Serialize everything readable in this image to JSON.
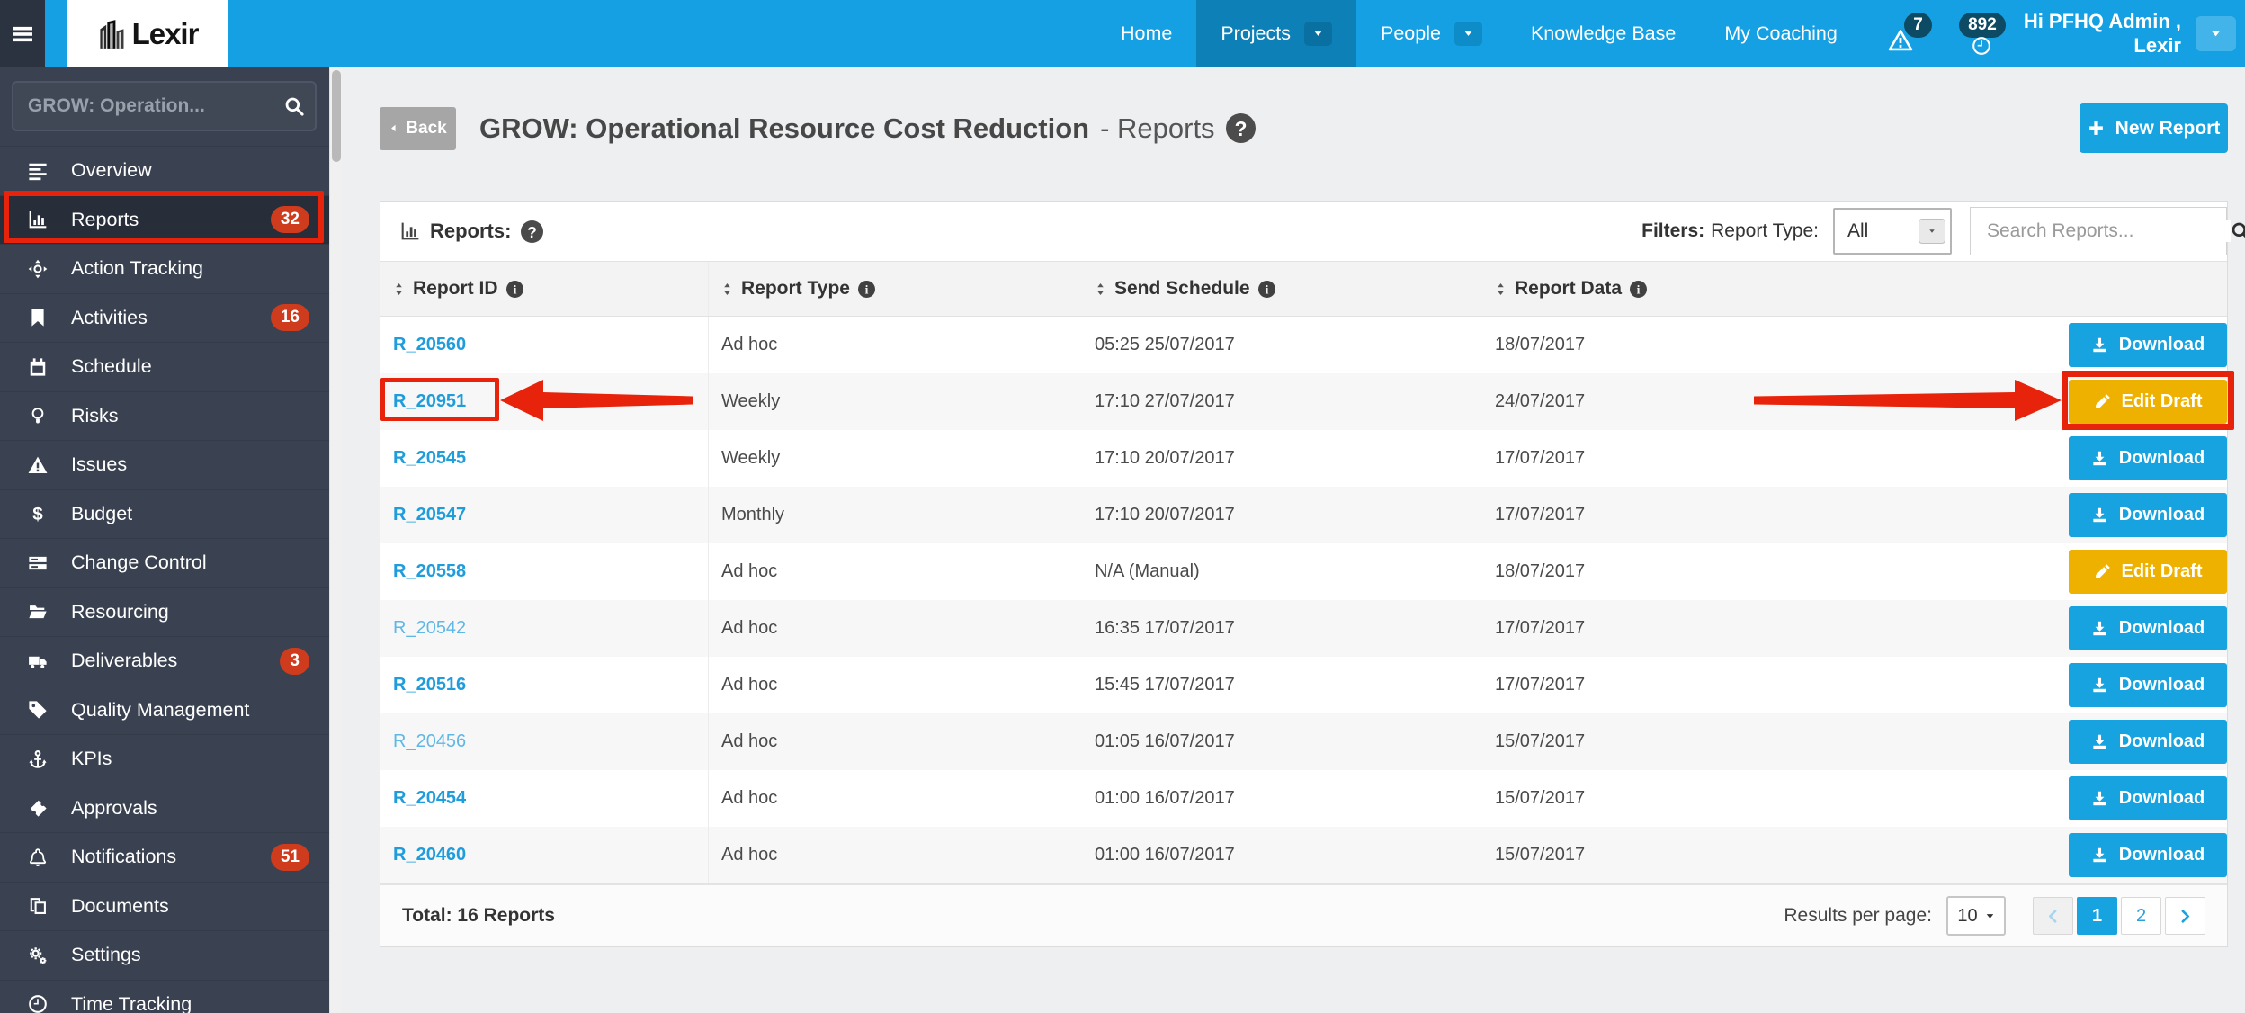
{
  "navbar": {
    "brand": "Lexir",
    "items": [
      {
        "label": "Home",
        "active": false,
        "dropdown": false
      },
      {
        "label": "Projects",
        "active": true,
        "dropdown": true
      },
      {
        "label": "People",
        "active": false,
        "dropdown": true
      },
      {
        "label": "Knowledge Base",
        "active": false,
        "dropdown": false
      },
      {
        "label": "My Coaching",
        "active": false,
        "dropdown": false
      }
    ],
    "alerts_badge": "7",
    "notifications_badge": "892",
    "user_greeting_line1": "Hi PFHQ Admin ,",
    "user_greeting_line2": "Lexir"
  },
  "sidebar": {
    "search_placeholder": "GROW: Operation...",
    "items": [
      {
        "label": "Overview",
        "icon": "align-left-icon"
      },
      {
        "label": "Reports",
        "icon": "bar-chart-icon",
        "badge": "32",
        "active": true
      },
      {
        "label": "Action Tracking",
        "icon": "crosshair-icon"
      },
      {
        "label": "Activities",
        "icon": "bookmark-icon",
        "badge": "16"
      },
      {
        "label": "Schedule",
        "icon": "calendar-icon"
      },
      {
        "label": "Risks",
        "icon": "lightbulb-icon"
      },
      {
        "label": "Issues",
        "icon": "warning-icon"
      },
      {
        "label": "Budget",
        "icon": "dollar-icon"
      },
      {
        "label": "Change Control",
        "icon": "server-icon"
      },
      {
        "label": "Resourcing",
        "icon": "folder-icon"
      },
      {
        "label": "Deliverables",
        "icon": "truck-icon",
        "badge": "3"
      },
      {
        "label": "Quality Management",
        "icon": "tag-icon"
      },
      {
        "label": "KPIs",
        "icon": "anchor-icon"
      },
      {
        "label": "Approvals",
        "icon": "ticket-icon"
      },
      {
        "label": "Notifications",
        "icon": "bell-icon",
        "badge": "51"
      },
      {
        "label": "Documents",
        "icon": "copy-icon"
      },
      {
        "label": "Settings",
        "icon": "gears-icon"
      },
      {
        "label": "Time Tracking",
        "icon": "clock-icon"
      }
    ]
  },
  "header": {
    "back_label": "Back",
    "title": "GROW: Operational Resource Cost Reduction",
    "subtitle": "- Reports",
    "new_report_label": "New Report"
  },
  "toolbar": {
    "panel_title": "Reports:",
    "filters_label": "Filters:",
    "filter_name": "Report Type:",
    "filter_value": "All",
    "search_placeholder": "Search Reports..."
  },
  "table": {
    "columns": [
      "Report ID",
      "Report Type",
      "Send Schedule",
      "Report Data"
    ],
    "rows": [
      {
        "id": "R_20560",
        "type": "Ad hoc",
        "schedule": "05:25 25/07/2017",
        "data": "18/07/2017",
        "action": "Download",
        "emphasis": true
      },
      {
        "id": "R_20951",
        "type": "Weekly",
        "schedule": "17:10 27/07/2017",
        "data": "24/07/2017",
        "action": "Edit Draft",
        "emphasis": true
      },
      {
        "id": "R_20545",
        "type": "Weekly",
        "schedule": "17:10 20/07/2017",
        "data": "17/07/2017",
        "action": "Download",
        "emphasis": true
      },
      {
        "id": "R_20547",
        "type": "Monthly",
        "schedule": "17:10 20/07/2017",
        "data": "17/07/2017",
        "action": "Download",
        "emphasis": true
      },
      {
        "id": "R_20558",
        "type": "Ad hoc",
        "schedule": "N/A (Manual)",
        "data": "18/07/2017",
        "action": "Edit Draft",
        "emphasis": true
      },
      {
        "id": "R_20542",
        "type": "Ad hoc",
        "schedule": "16:35 17/07/2017",
        "data": "17/07/2017",
        "action": "Download",
        "emphasis": false
      },
      {
        "id": "R_20516",
        "type": "Ad hoc",
        "schedule": "15:45 17/07/2017",
        "data": "17/07/2017",
        "action": "Download",
        "emphasis": true
      },
      {
        "id": "R_20456",
        "type": "Ad hoc",
        "schedule": "01:05 16/07/2017",
        "data": "15/07/2017",
        "action": "Download",
        "emphasis": false
      },
      {
        "id": "R_20454",
        "type": "Ad hoc",
        "schedule": "01:00 16/07/2017",
        "data": "15/07/2017",
        "action": "Download",
        "emphasis": true
      },
      {
        "id": "R_20460",
        "type": "Ad hoc",
        "schedule": "01:00 16/07/2017",
        "data": "15/07/2017",
        "action": "Download",
        "emphasis": true
      }
    ]
  },
  "footer": {
    "total_label": "Total: 16 Reports",
    "results_per_page_label": "Results per page:",
    "results_per_page_value": "10",
    "pages": [
      "1",
      "2"
    ],
    "active_page": "1"
  },
  "colors": {
    "navbar_blue": "#14a0e2",
    "accent_blue": "#17a2e0",
    "edit_orange": "#eeb100",
    "badge_red": "#ce3b1d",
    "annotation_red": "#e8230b",
    "sidebar_dark": "#3a4150"
  }
}
